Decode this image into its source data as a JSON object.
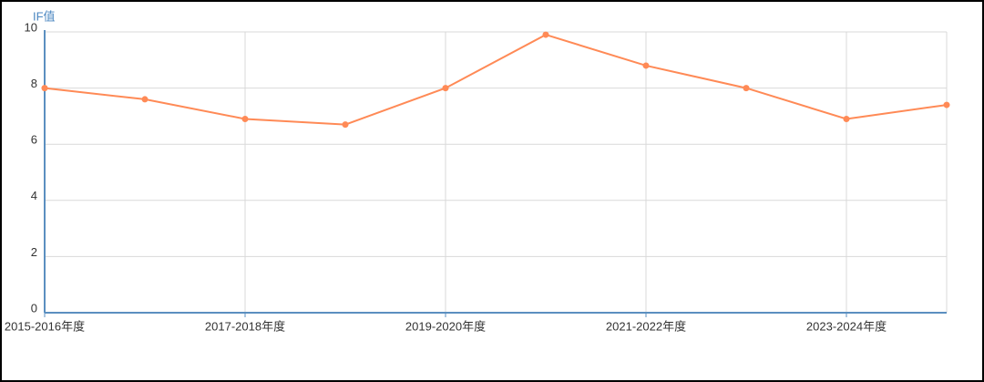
{
  "chart_data": {
    "type": "line",
    "y_axis_label": "IF值",
    "categories": [
      "2015-2016年度",
      null,
      "2017-2018年度",
      null,
      "2019-2020年度",
      null,
      "2021-2022年度",
      null,
      "2023-2024年度",
      null
    ],
    "values": [
      8.0,
      7.6,
      6.9,
      6.7,
      8.0,
      9.9,
      8.8,
      8.0,
      6.9,
      7.4
    ],
    "color": "#ff8a56",
    "ylim": [
      0,
      10
    ],
    "yticks": [
      0,
      2,
      4,
      6,
      8,
      10
    ],
    "grid": true
  }
}
